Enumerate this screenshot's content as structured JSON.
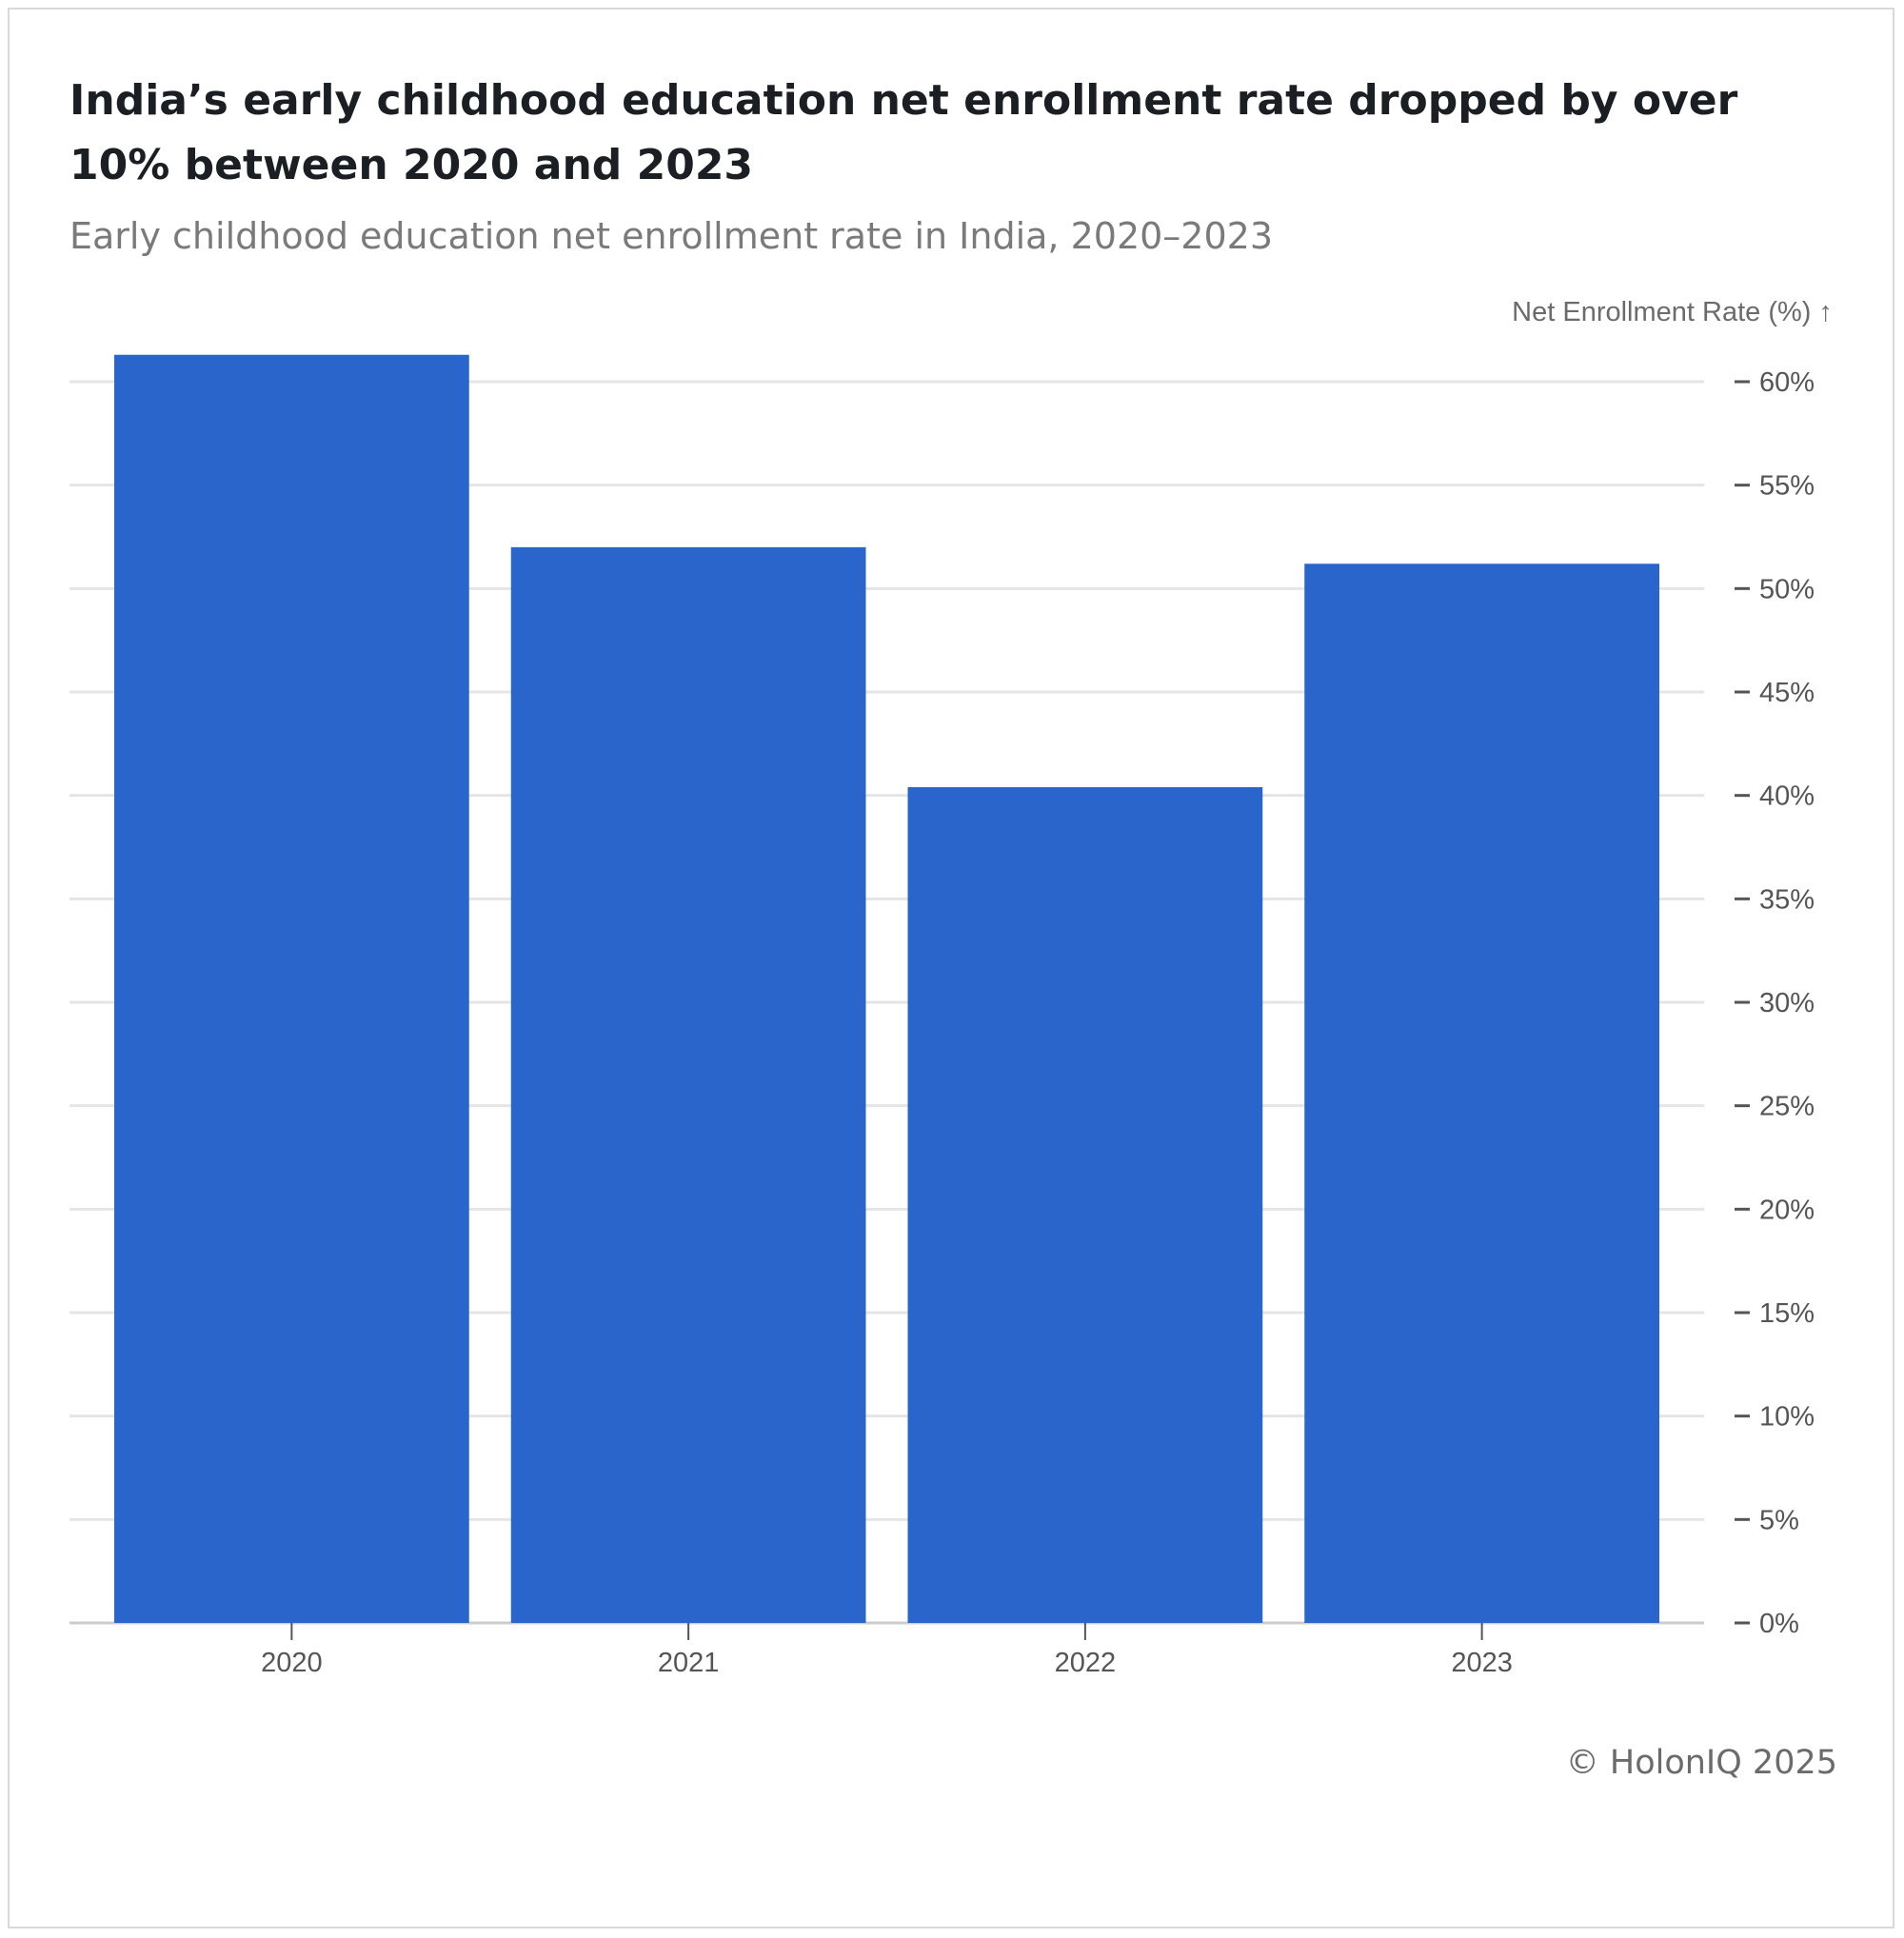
{
  "title": "India’s early childhood education net enrollment rate dropped by over 10% between 2020 and 2023",
  "subtitle": "Early childhood education net enrollment rate in India, 2020–2023",
  "footer": "© HolonIQ 2025",
  "colors": {
    "bar": "#2a65cc",
    "grid": "#e5e5e5",
    "baseline": "#cccccc",
    "tick": "#555555"
  },
  "chart_data": {
    "type": "bar",
    "title": "India’s early childhood education net enrollment rate dropped by over 10% between 2020 and 2023",
    "subtitle": "Early childhood education net enrollment rate in India, 2020–2023",
    "xlabel": "",
    "ylabel": "Net Enrollment Rate (%) ↑",
    "categories": [
      "2020",
      "2021",
      "2022",
      "2023"
    ],
    "values": [
      61.3,
      52.0,
      40.4,
      51.2
    ],
    "ylim": [
      0,
      60
    ],
    "yticks": [
      0,
      5,
      10,
      15,
      20,
      25,
      30,
      35,
      40,
      45,
      50,
      55,
      60
    ],
    "ytick_labels": [
      "0%",
      "5%",
      "10%",
      "15%",
      "20%",
      "25%",
      "30%",
      "35%",
      "40%",
      "45%",
      "50%",
      "55%",
      "60%"
    ],
    "y_axis_position": "right",
    "grid": true,
    "legend": "none"
  }
}
